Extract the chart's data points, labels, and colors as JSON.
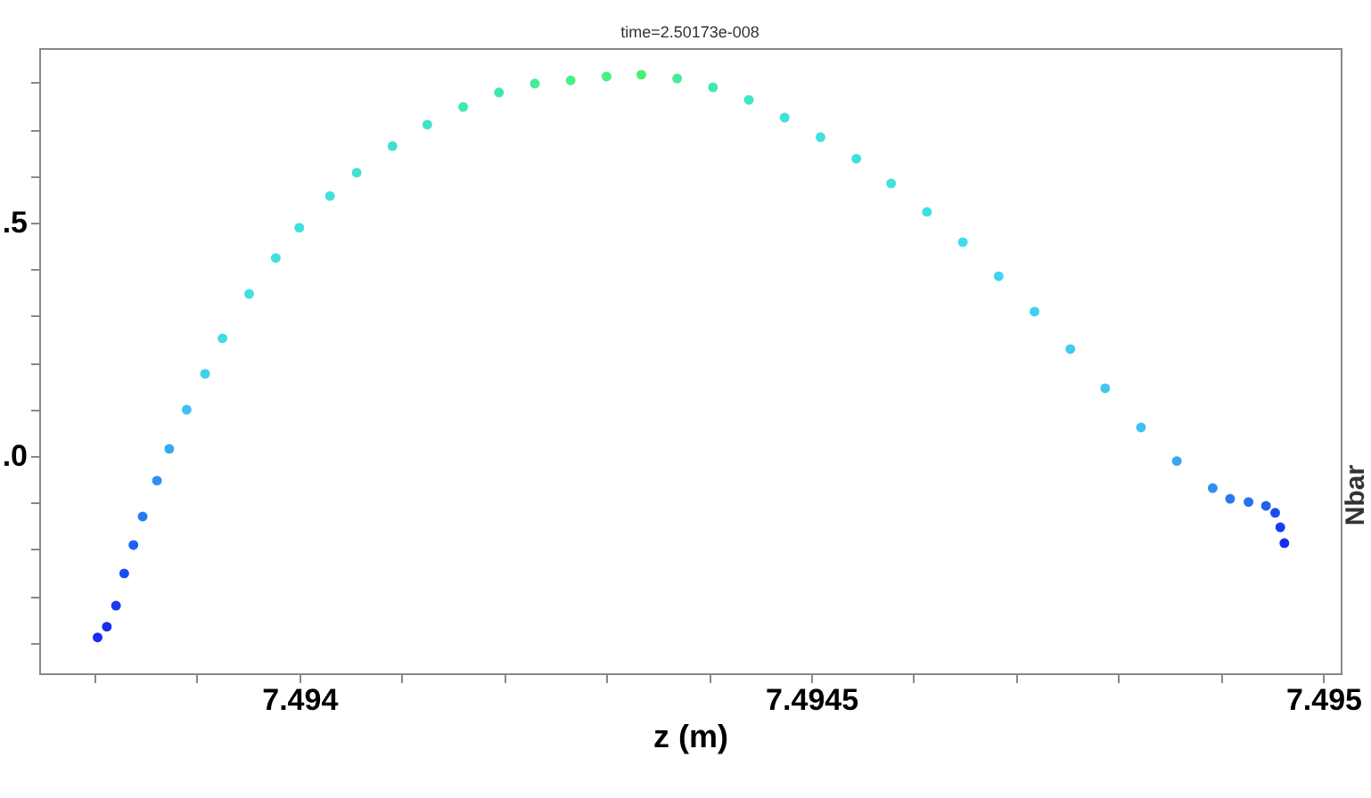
{
  "chart_data": {
    "type": "scatter",
    "title": "time=2.50173e-008",
    "xlabel": "z (m)",
    "annotations": [
      "Nbar"
    ],
    "x": [
      7.493803,
      7.493812,
      7.493821,
      7.493829,
      7.493838,
      7.493847,
      7.493861,
      7.493873,
      7.49389,
      7.493908,
      7.493925,
      7.493951,
      7.493977,
      7.494,
      7.49403,
      7.494056,
      7.494091,
      7.494125,
      7.49416,
      7.494195,
      7.49423,
      7.494265,
      7.4943,
      7.494334,
      7.494369,
      7.494404,
      7.494439,
      7.494474,
      7.494509,
      7.494544,
      7.494578,
      7.494613,
      7.494648,
      7.494683,
      7.494718,
      7.494753,
      7.494787,
      7.494822,
      7.494857,
      7.494892,
      7.494909,
      7.494927,
      7.494944,
      7.494953,
      7.494958,
      7.494962
    ],
    "series": [
      {
        "values": [
          -0.389,
          -0.366,
          -0.321,
          -0.252,
          -0.191,
          -0.13,
          -0.053,
          0.015,
          0.099,
          0.176,
          0.252,
          0.347,
          0.424,
          0.489,
          0.557,
          0.607,
          0.664,
          0.71,
          0.748,
          0.779,
          0.798,
          0.805,
          0.813,
          0.817,
          0.809,
          0.79,
          0.763,
          0.725,
          0.683,
          0.637,
          0.584,
          0.523,
          0.458,
          0.385,
          0.309,
          0.229,
          0.145,
          0.061,
          -0.011,
          -0.069,
          -0.092,
          -0.099,
          -0.107,
          -0.122,
          -0.153,
          -0.187
        ],
        "colors": [
          "#1a2cf0",
          "#1a2cf0",
          "#1a3cf0",
          "#1a4cf0",
          "#2060f0",
          "#2a78f0",
          "#3090f0",
          "#38a8f0",
          "#40c0f0",
          "#40d0f0",
          "#40dce8",
          "#40e0e0",
          "#40e0e0",
          "#40e0e0",
          "#40e0dc",
          "#40e0d4",
          "#40e0d0",
          "#40e4c8",
          "#40e8b8",
          "#40e8a8",
          "#44ec98",
          "#48f088",
          "#48f080",
          "#48f078",
          "#44ec98",
          "#40e8b0",
          "#40e4c8",
          "#40e0d8",
          "#40e0e0",
          "#40e0e0",
          "#40e0e0",
          "#40e0e0",
          "#40dce8",
          "#40d4f0",
          "#40d0f0",
          "#40ccf0",
          "#40c8f0",
          "#40c0f0",
          "#38a8f0",
          "#3090f0",
          "#2a78f0",
          "#2a70f0",
          "#2060f0",
          "#1a4cf0",
          "#1a3cf0",
          "#1a2cf0"
        ]
      }
    ],
    "marker": "circle",
    "grid": false,
    "xlim": [
      7.493746,
      7.495017
    ],
    "xticks": [
      {
        "value": 7.4938,
        "label": null
      },
      {
        "value": 7.4939,
        "label": null
      },
      7.494,
      {
        "value": 7.4941,
        "label": null
      },
      {
        "value": 7.4942,
        "label": null
      },
      {
        "value": 7.4943,
        "label": null
      },
      {
        "value": 7.4944,
        "label": null
      },
      7.4945,
      {
        "value": 7.4946,
        "label": null
      },
      {
        "value": 7.4947,
        "label": null
      },
      {
        "value": 7.4948,
        "label": null
      },
      {
        "value": 7.4949,
        "label": null
      },
      7.495
    ],
    "ylim": [
      -0.466,
      0.874
    ],
    "yticks": [
      {
        "value": -0.4,
        "label": null
      },
      {
        "value": -0.3,
        "label": null
      },
      {
        "value": -0.2,
        "label": null
      },
      {
        "value": -0.1,
        "label": null
      },
      {
        "value": 0.0,
        "label": ".0"
      },
      {
        "value": 0.1,
        "label": null
      },
      {
        "value": 0.2,
        "label": null
      },
      {
        "value": 0.3,
        "label": null
      },
      {
        "value": 0.4,
        "label": null
      },
      {
        "value": 0.5,
        "label": ".5"
      },
      {
        "value": 0.6,
        "label": null
      },
      {
        "value": 0.7,
        "label": null
      },
      {
        "value": 0.8,
        "label": null
      }
    ]
  }
}
